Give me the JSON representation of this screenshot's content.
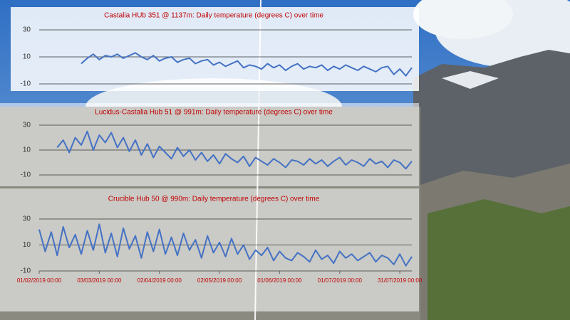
{
  "chart_data": [
    {
      "type": "line",
      "title": "Castalia HUb 351 @ 1137m: Daily temperature (degrees C) over time",
      "x": [
        "2019-02-01",
        "2019-02-04",
        "2019-02-07",
        "2019-02-10",
        "2019-02-13",
        "2019-02-16",
        "2019-02-19",
        "2019-02-22",
        "2019-02-25",
        "2019-02-28",
        "2019-03-03",
        "2019-03-06",
        "2019-03-09",
        "2019-03-12",
        "2019-03-15",
        "2019-03-18",
        "2019-03-21",
        "2019-03-24",
        "2019-03-27",
        "2019-03-30",
        "2019-04-02",
        "2019-04-05",
        "2019-04-08",
        "2019-04-11",
        "2019-04-14",
        "2019-04-17",
        "2019-04-20",
        "2019-04-23",
        "2019-04-26",
        "2019-04-29",
        "2019-05-02",
        "2019-05-05",
        "2019-05-08",
        "2019-05-11",
        "2019-05-14",
        "2019-05-17",
        "2019-05-20",
        "2019-05-23",
        "2019-05-26",
        "2019-05-29",
        "2019-06-01",
        "2019-06-04",
        "2019-06-07",
        "2019-06-10",
        "2019-06-13",
        "2019-06-16",
        "2019-06-19",
        "2019-06-22",
        "2019-06-25",
        "2019-06-28",
        "2019-07-01",
        "2019-07-04",
        "2019-07-07",
        "2019-07-10",
        "2019-07-13",
        "2019-07-16",
        "2019-07-19",
        "2019-07-22",
        "2019-07-25",
        "2019-07-28",
        "2019-07-31",
        "2019-08-03",
        "2019-08-06"
      ],
      "values": [
        null,
        null,
        null,
        null,
        null,
        null,
        null,
        5,
        9,
        12,
        8,
        11,
        10,
        12,
        9,
        11,
        13,
        10,
        8,
        11,
        7,
        9,
        10,
        6,
        8,
        9,
        5,
        7,
        8,
        4,
        6,
        3,
        5,
        7,
        2,
        4,
        3,
        1,
        5,
        2,
        4,
        0,
        3,
        5,
        1,
        3,
        2,
        4,
        0,
        3,
        1,
        4,
        2,
        0,
        3,
        1,
        -1,
        2,
        3,
        -3,
        1,
        -4,
        2
      ],
      "color": "#4472c4",
      "xlim": [
        "2019-02-01",
        "2019-08-06"
      ],
      "ylim": [
        -10,
        30
      ],
      "yticks": [
        -10,
        10,
        30
      ],
      "grid": true
    },
    {
      "type": "line",
      "title": "Lucidus-Castalia Hub 51 @ 991m: Daily temperature (degrees C) over time",
      "x": [
        "2019-02-01",
        "2019-02-04",
        "2019-02-07",
        "2019-02-10",
        "2019-02-13",
        "2019-02-16",
        "2019-02-19",
        "2019-02-22",
        "2019-02-25",
        "2019-02-28",
        "2019-03-03",
        "2019-03-06",
        "2019-03-09",
        "2019-03-12",
        "2019-03-15",
        "2019-03-18",
        "2019-03-21",
        "2019-03-24",
        "2019-03-27",
        "2019-03-30",
        "2019-04-02",
        "2019-04-05",
        "2019-04-08",
        "2019-04-11",
        "2019-04-14",
        "2019-04-17",
        "2019-04-20",
        "2019-04-23",
        "2019-04-26",
        "2019-04-29",
        "2019-05-02",
        "2019-05-05",
        "2019-05-08",
        "2019-05-11",
        "2019-05-14",
        "2019-05-17",
        "2019-05-20",
        "2019-05-23",
        "2019-05-26",
        "2019-05-29",
        "2019-06-01",
        "2019-06-04",
        "2019-06-07",
        "2019-06-10",
        "2019-06-13",
        "2019-06-16",
        "2019-06-19",
        "2019-06-22",
        "2019-06-25",
        "2019-06-28",
        "2019-07-01",
        "2019-07-04",
        "2019-07-07",
        "2019-07-10",
        "2019-07-13",
        "2019-07-16",
        "2019-07-19",
        "2019-07-22",
        "2019-07-25",
        "2019-07-28",
        "2019-07-31",
        "2019-08-03",
        "2019-08-06"
      ],
      "values": [
        null,
        null,
        null,
        12,
        18,
        8,
        20,
        14,
        25,
        10,
        22,
        16,
        24,
        12,
        20,
        9,
        18,
        6,
        15,
        4,
        13,
        8,
        3,
        12,
        5,
        10,
        2,
        8,
        1,
        6,
        -1,
        7,
        3,
        0,
        5,
        -3,
        4,
        1,
        -2,
        3,
        0,
        -4,
        2,
        1,
        -2,
        3,
        -1,
        2,
        -3,
        1,
        4,
        -2,
        2,
        0,
        -3,
        3,
        -1,
        1,
        -4,
        2,
        0,
        -5,
        1
      ],
      "color": "#4472c4",
      "xlim": [
        "2019-02-01",
        "2019-08-06"
      ],
      "ylim": [
        -10,
        30
      ],
      "yticks": [
        -10,
        10,
        30
      ],
      "grid": true
    },
    {
      "type": "line",
      "title": "Crucible Hub 50 @ 990m: Daily temperature (degrees C) over time",
      "x": [
        "2019-02-01",
        "2019-02-04",
        "2019-02-07",
        "2019-02-10",
        "2019-02-13",
        "2019-02-16",
        "2019-02-19",
        "2019-02-22",
        "2019-02-25",
        "2019-02-28",
        "2019-03-03",
        "2019-03-06",
        "2019-03-09",
        "2019-03-12",
        "2019-03-15",
        "2019-03-18",
        "2019-03-21",
        "2019-03-24",
        "2019-03-27",
        "2019-03-30",
        "2019-04-02",
        "2019-04-05",
        "2019-04-08",
        "2019-04-11",
        "2019-04-14",
        "2019-04-17",
        "2019-04-20",
        "2019-04-23",
        "2019-04-26",
        "2019-04-29",
        "2019-05-02",
        "2019-05-05",
        "2019-05-08",
        "2019-05-11",
        "2019-05-14",
        "2019-05-17",
        "2019-05-20",
        "2019-05-23",
        "2019-05-26",
        "2019-05-29",
        "2019-06-01",
        "2019-06-04",
        "2019-06-07",
        "2019-06-10",
        "2019-06-13",
        "2019-06-16",
        "2019-06-19",
        "2019-06-22",
        "2019-06-25",
        "2019-06-28",
        "2019-07-01",
        "2019-07-04",
        "2019-07-07",
        "2019-07-10",
        "2019-07-13",
        "2019-07-16",
        "2019-07-19",
        "2019-07-22",
        "2019-07-25",
        "2019-07-28",
        "2019-07-31",
        "2019-08-03",
        "2019-08-06"
      ],
      "values": [
        22,
        5,
        20,
        2,
        24,
        8,
        18,
        3,
        21,
        6,
        26,
        4,
        19,
        1,
        23,
        7,
        17,
        0,
        20,
        5,
        22,
        3,
        16,
        2,
        19,
        6,
        14,
        0,
        17,
        4,
        12,
        1,
        15,
        3,
        10,
        -1,
        6,
        2,
        8,
        -2,
        5,
        0,
        -2,
        4,
        1,
        -3,
        6,
        -1,
        2,
        -4,
        5,
        0,
        3,
        -2,
        1,
        4,
        -3,
        2,
        0,
        -5,
        3,
        -6,
        1
      ],
      "color": "#4472c4",
      "xlim": [
        "2019-02-01",
        "2019-08-06"
      ],
      "ylim": [
        -10,
        30
      ],
      "yticks": [
        -10,
        10,
        30
      ],
      "grid": true,
      "xticks": [
        {
          "value": "2019-02-01",
          "label": "01/02/2019 00:00"
        },
        {
          "value": "2019-03-03",
          "label": "03/03/2019 00:00"
        },
        {
          "value": "2019-04-02",
          "label": "02/04/2019 00:00"
        },
        {
          "value": "2019-05-02",
          "label": "02/05/2019 00:00"
        },
        {
          "value": "2019-06-01",
          "label": "01/06/2019 00:00"
        },
        {
          "value": "2019-07-01",
          "label": "01/07/2019 00:00"
        },
        {
          "value": "2019-07-31",
          "label": "31/07/2019 00:00"
        }
      ]
    }
  ]
}
